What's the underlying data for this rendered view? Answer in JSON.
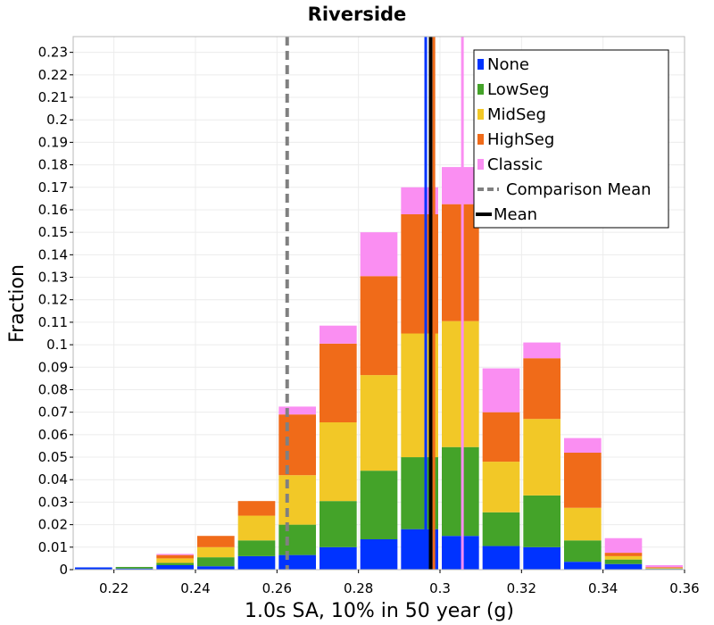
{
  "chart_data": {
    "type": "bar",
    "stacked": true,
    "title": "Riverside",
    "xlabel": "1.0s SA, 10% in 50 year (g)",
    "ylabel": "Fraction",
    "xlim": [
      0.21,
      0.36
    ],
    "ylim": [
      0,
      0.237
    ],
    "bin_width": 0.01,
    "x_ticks": [
      "0.22",
      "0.24",
      "0.26",
      "0.28",
      "0.3",
      "0.32",
      "0.34",
      "0.36"
    ],
    "x_tick_values": [
      0.22,
      0.24,
      0.26,
      0.28,
      0.3,
      0.32,
      0.34,
      0.36
    ],
    "y_ticks": [
      "0",
      "0.01",
      "0.02",
      "0.03",
      "0.04",
      "0.05",
      "0.06",
      "0.07",
      "0.08",
      "0.09",
      "0.1",
      "0.11",
      "0.12",
      "0.13",
      "0.14",
      "0.15",
      "0.16",
      "0.17",
      "0.18",
      "0.19",
      "0.2",
      "0.21",
      "0.22",
      "0.23"
    ],
    "y_tick_values": [
      0,
      0.01,
      0.02,
      0.03,
      0.04,
      0.05,
      0.06,
      0.07,
      0.08,
      0.09,
      0.1,
      0.11,
      0.12,
      0.13,
      0.14,
      0.15,
      0.16,
      0.17,
      0.18,
      0.19,
      0.2,
      0.21,
      0.22,
      0.23
    ],
    "bin_centers": [
      0.215,
      0.225,
      0.235,
      0.245,
      0.255,
      0.265,
      0.275,
      0.285,
      0.295,
      0.305,
      0.315,
      0.325,
      0.335,
      0.345,
      0.355
    ],
    "series": [
      {
        "name": "None",
        "color": "#0033ff",
        "values": [
          0.001,
          0.0005,
          0.002,
          0.0015,
          0.006,
          0.0065,
          0.01,
          0.0135,
          0.018,
          0.015,
          0.0105,
          0.01,
          0.0035,
          0.0025,
          0.0003
        ]
      },
      {
        "name": "LowSeg",
        "color": "#44a329",
        "values": [
          0,
          0.0007,
          0.001,
          0.004,
          0.007,
          0.0135,
          0.0205,
          0.0305,
          0.032,
          0.0395,
          0.015,
          0.023,
          0.0095,
          0.002,
          0.0002
        ]
      },
      {
        "name": "MidSeg",
        "color": "#f2c827",
        "values": [
          0,
          0,
          0.002,
          0.0045,
          0.011,
          0.022,
          0.035,
          0.0425,
          0.055,
          0.056,
          0.0225,
          0.034,
          0.0145,
          0.0015,
          0.0002
        ]
      },
      {
        "name": "HighSeg",
        "color": "#f06b19",
        "values": [
          0,
          0,
          0.0015,
          0.005,
          0.0065,
          0.027,
          0.035,
          0.044,
          0.053,
          0.052,
          0.022,
          0.027,
          0.0245,
          0.0015,
          0.0004
        ]
      },
      {
        "name": "Classic",
        "color": "#fa8ef2",
        "values": [
          0,
          0,
          0.0005,
          0,
          0,
          0.0035,
          0.008,
          0.0195,
          0.012,
          0.0165,
          0.0195,
          0.007,
          0.0065,
          0.0065,
          0.0009
        ]
      }
    ],
    "vertical_lines": [
      {
        "name": "Comparison Mean",
        "x": 0.2625,
        "color": "#808080",
        "style": "dashed"
      },
      {
        "name": "None",
        "x": 0.2965,
        "color": "#0033ff",
        "style": "solid"
      },
      {
        "name": "HighSeg",
        "x": 0.2985,
        "color": "#f06b19",
        "style": "solid"
      },
      {
        "name": "Classic",
        "x": 0.3055,
        "color": "#fa8ef2",
        "style": "solid"
      },
      {
        "name": "Mean",
        "x": 0.2977,
        "color": "#000000",
        "style": "solid"
      }
    ],
    "legend": {
      "position": "top-right",
      "entries": [
        {
          "label": "None",
          "color": "#0033ff",
          "kind": "box"
        },
        {
          "label": "LowSeg",
          "color": "#44a329",
          "kind": "box"
        },
        {
          "label": "MidSeg",
          "color": "#f2c827",
          "kind": "box"
        },
        {
          "label": "HighSeg",
          "color": "#f06b19",
          "kind": "box"
        },
        {
          "label": "Classic",
          "color": "#fa8ef2",
          "kind": "box"
        },
        {
          "label": "Comparison Mean",
          "color": "#808080",
          "kind": "dashed"
        },
        {
          "label": "Mean",
          "color": "#000000",
          "kind": "line"
        }
      ]
    },
    "grid": true
  }
}
